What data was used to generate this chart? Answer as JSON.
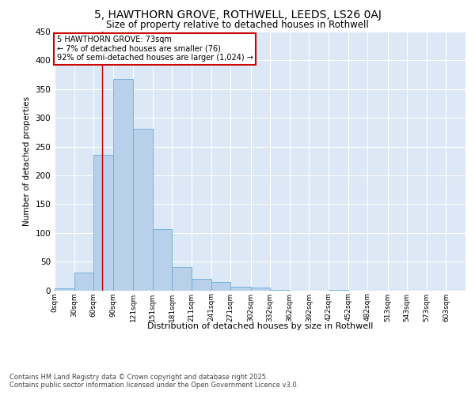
{
  "title": "5, HAWTHORN GROVE, ROTHWELL, LEEDS, LS26 0AJ",
  "subtitle": "Size of property relative to detached houses in Rothwell",
  "xlabel": "Distribution of detached houses by size in Rothwell",
  "ylabel": "Number of detached properties",
  "bar_color": "#b8d0ea",
  "bar_edge_color": "#6baed6",
  "background_color": "#dce8f5",
  "grid_color": "#ffffff",
  "annotation_box_color": "#cc0000",
  "annotation_text": "5 HAWTHORN GROVE: 73sqm\n← 7% of detached houses are smaller (76)\n92% of semi-detached houses are larger (1,024) →",
  "property_line_x": 73,
  "footer_text": "Contains HM Land Registry data © Crown copyright and database right 2025.\nContains public sector information licensed under the Open Government Licence v3.0.",
  "categories": [
    "0sqm",
    "30sqm",
    "60sqm",
    "90sqm",
    "121sqm",
    "151sqm",
    "181sqm",
    "211sqm",
    "241sqm",
    "271sqm",
    "302sqm",
    "332sqm",
    "362sqm",
    "392sqm",
    "422sqm",
    "452sqm",
    "482sqm",
    "513sqm",
    "543sqm",
    "573sqm",
    "603sqm"
  ],
  "bin_edges": [
    0,
    30,
    60,
    90,
    121,
    151,
    181,
    211,
    241,
    271,
    302,
    332,
    362,
    392,
    422,
    452,
    482,
    513,
    543,
    573,
    603,
    633
  ],
  "values": [
    3,
    31,
    236,
    367,
    281,
    106,
    41,
    20,
    14,
    6,
    5,
    1,
    0,
    0,
    1,
    0,
    0,
    0,
    0,
    0,
    0
  ],
  "ylim": [
    0,
    450
  ],
  "yticks": [
    0,
    50,
    100,
    150,
    200,
    250,
    300,
    350,
    400,
    450
  ],
  "tick_labels_x": [
    "0sqm",
    "30sqm",
    "60sqm",
    "90sqm",
    "121sqm",
    "151sqm",
    "181sqm",
    "211sqm",
    "241sqm",
    "271sqm",
    "302sqm",
    "332sqm",
    "362sqm",
    "392sqm",
    "422sqm",
    "452sqm",
    "482sqm",
    "513sqm",
    "543sqm",
    "573sqm",
    "603sqm"
  ]
}
